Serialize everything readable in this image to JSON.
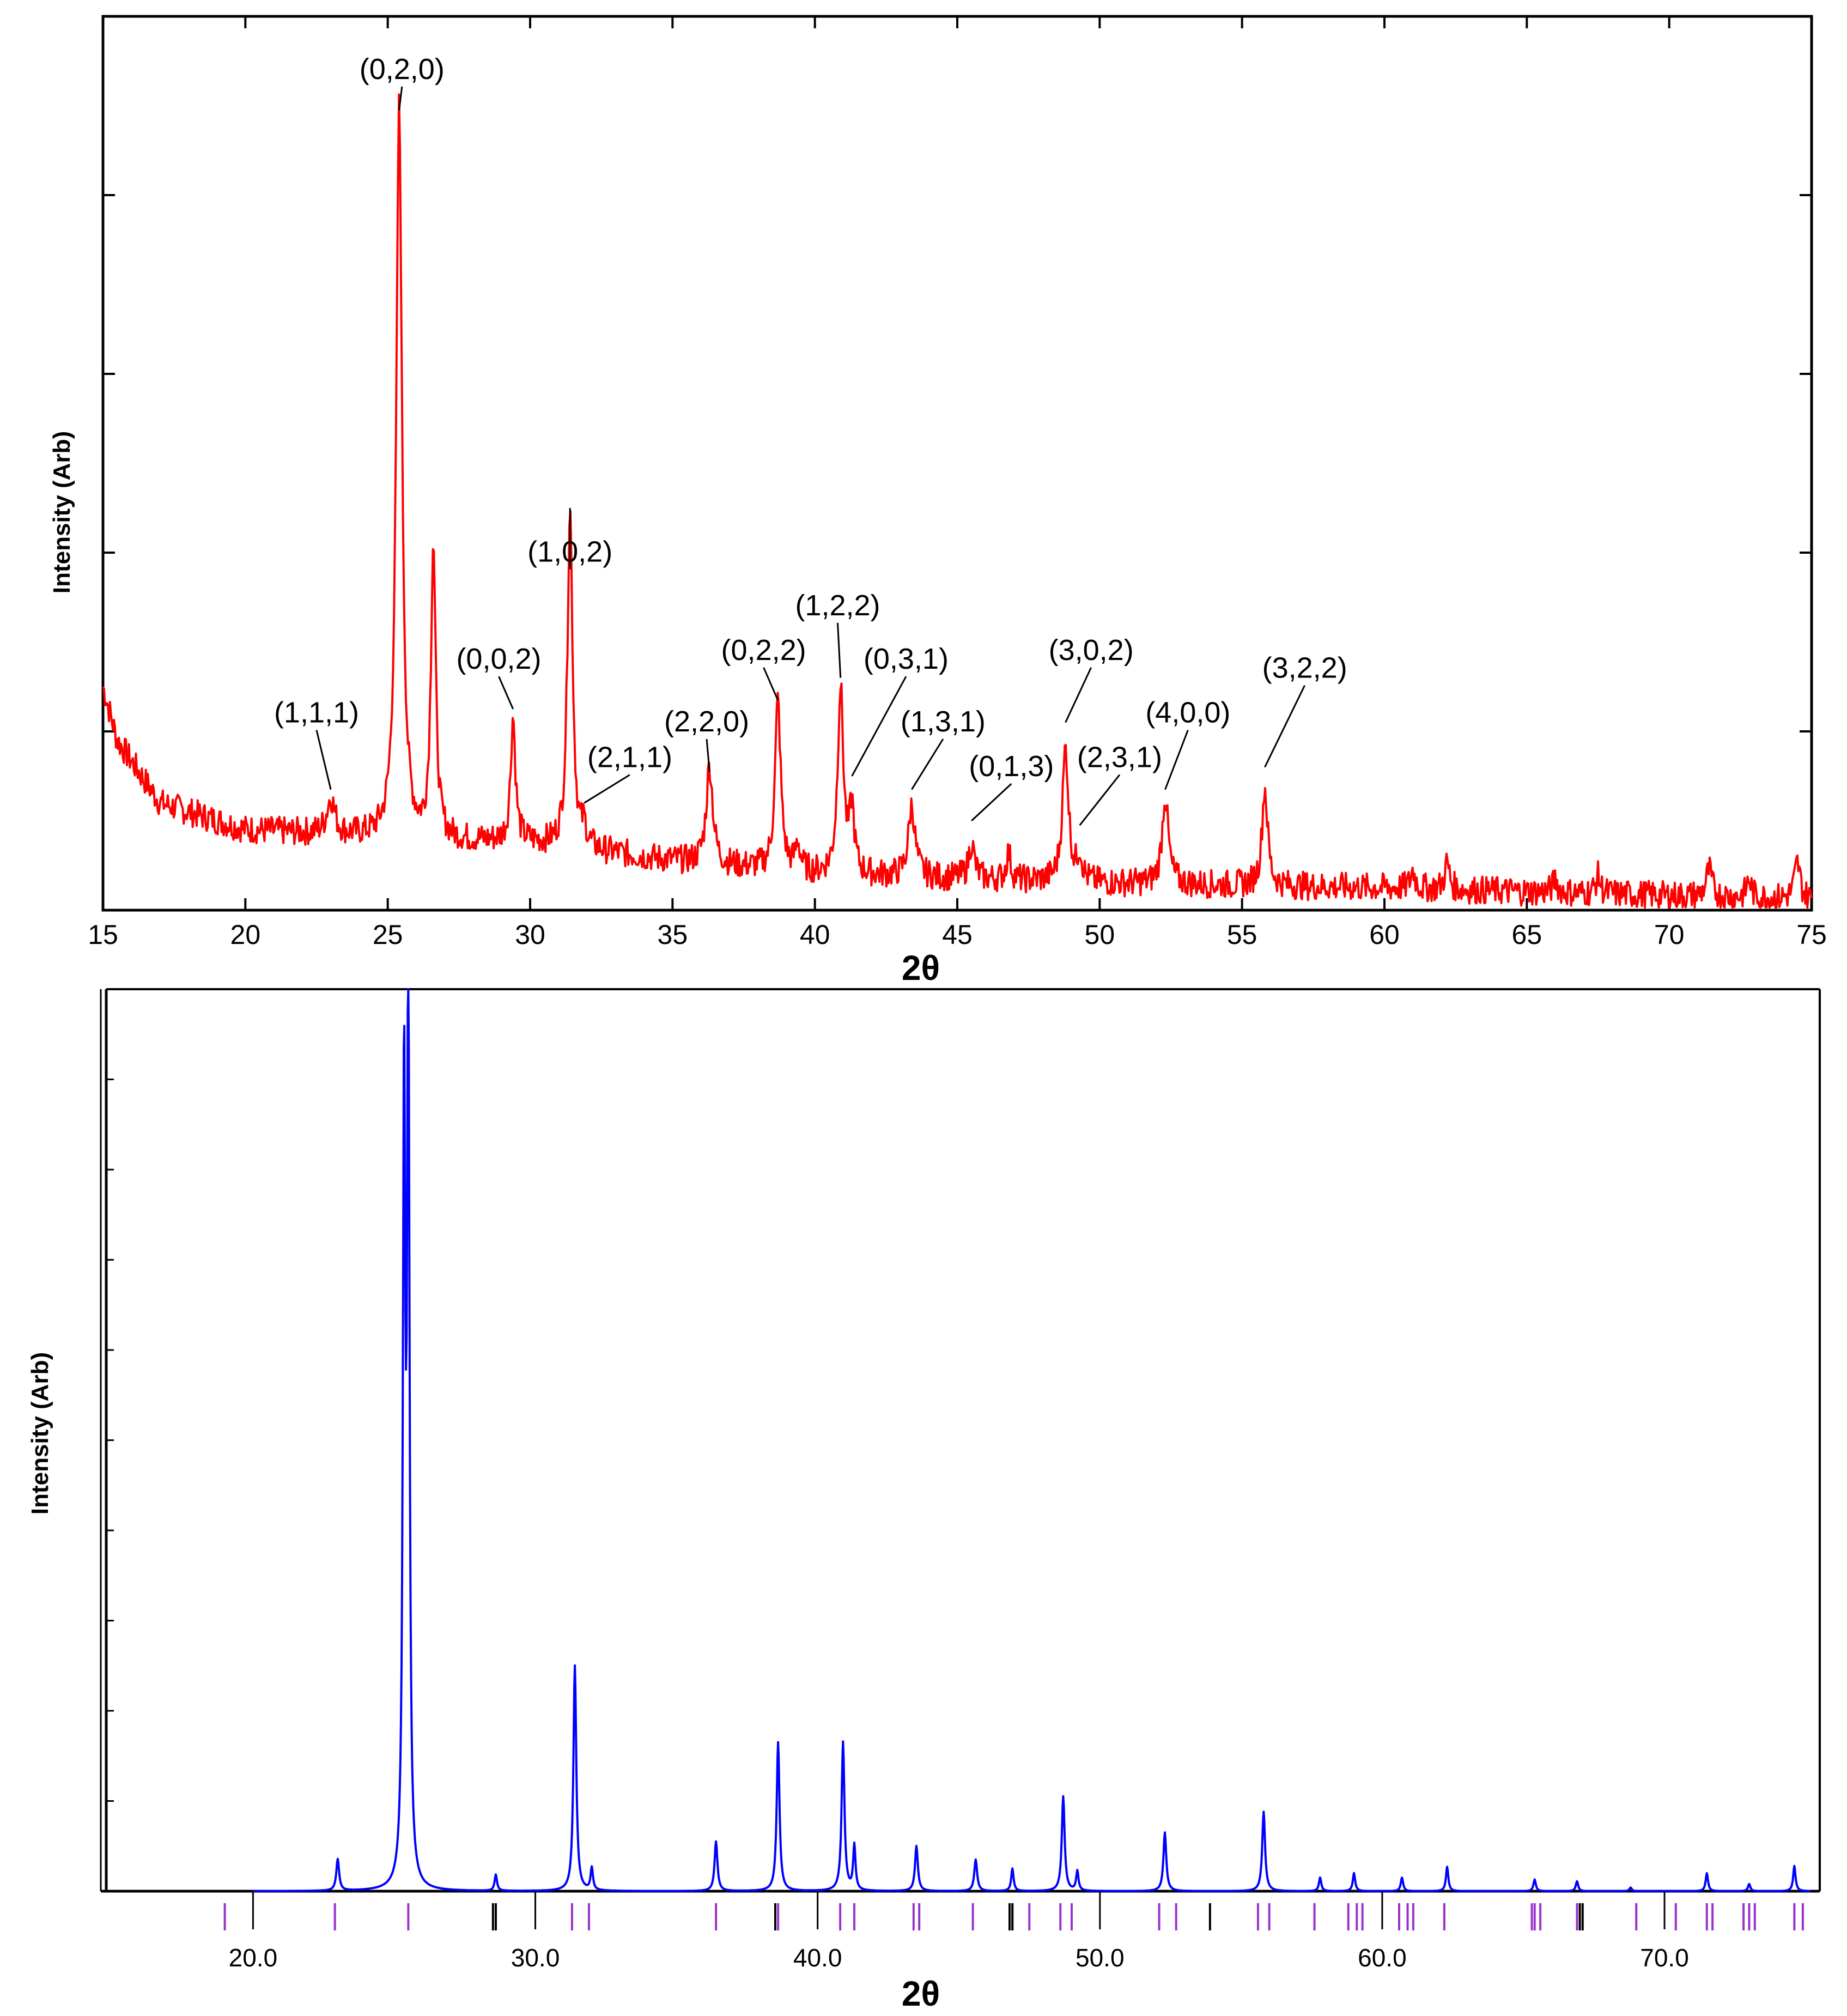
{
  "colors": {
    "experimental": "#ff0000",
    "calculated": "#0000ff",
    "reflection_marker": "#9933cc",
    "impurity_marker": "#000000",
    "axis": "#000000"
  },
  "chart_data": [
    {
      "type": "line",
      "ylabel": "Intensity (Arb)",
      "xlabel": "2θ",
      "xlim": [
        15,
        75
      ],
      "ylim": [
        0,
        100
      ],
      "xticks": [
        "15",
        "20",
        "25",
        "30",
        "35",
        "40",
        "45",
        "50",
        "55",
        "60",
        "65",
        "70",
        "75"
      ],
      "grid": false,
      "series": [
        {
          "background": [
            [
              15,
              25
            ],
            [
              15.5,
              19
            ],
            [
              17,
              12
            ],
            [
              20,
              9
            ],
            [
              25,
              8
            ],
            [
              30,
              7.5
            ],
            [
              35,
              5.5
            ],
            [
              40,
              4
            ],
            [
              45,
              3.5
            ],
            [
              50,
              3
            ],
            [
              60,
              2.5
            ],
            [
              75,
              1.2
            ]
          ],
          "noise": 1.6,
          "peaks": [
            {
              "x": 23.0,
              "h": 4,
              "w": 0.17
            },
            {
              "x": 25.4,
              "h": 82,
              "w": 0.12
            },
            {
              "x": 26.6,
              "h": 33,
              "w": 0.1
            },
            {
              "x": 29.4,
              "h": 14,
              "w": 0.1
            },
            {
              "x": 31.4,
              "h": 38,
              "w": 0.11
            },
            {
              "x": 31.9,
              "h": 2,
              "w": 0.1
            },
            {
              "x": 36.3,
              "h": 11,
              "w": 0.14
            },
            {
              "x": 38.7,
              "h": 19,
              "w": 0.12
            },
            {
              "x": 39.4,
              "h": 3,
              "w": 0.1
            },
            {
              "x": 40.9,
              "h": 21,
              "w": 0.12
            },
            {
              "x": 41.3,
              "h": 7,
              "w": 0.1
            },
            {
              "x": 43.4,
              "h": 8,
              "w": 0.14
            },
            {
              "x": 45.5,
              "h": 4,
              "w": 0.12
            },
            {
              "x": 46.8,
              "h": 3,
              "w": 0.1
            },
            {
              "x": 48.8,
              "h": 15,
              "w": 0.13
            },
            {
              "x": 49.3,
              "h": 3,
              "w": 0.1
            },
            {
              "x": 52.3,
              "h": 10,
              "w": 0.13
            },
            {
              "x": 55.8,
              "h": 11,
              "w": 0.12
            },
            {
              "x": 61.0,
              "h": 2,
              "w": 0.1
            },
            {
              "x": 62.2,
              "h": 3,
              "w": 0.1
            },
            {
              "x": 66.0,
              "h": 1.5,
              "w": 0.1
            },
            {
              "x": 67.5,
              "h": 2,
              "w": 0.1
            },
            {
              "x": 71.4,
              "h": 3,
              "w": 0.12
            },
            {
              "x": 72.8,
              "h": 2,
              "w": 0.1
            },
            {
              "x": 74.5,
              "h": 4,
              "w": 0.12
            }
          ]
        }
      ],
      "annotations": [
        {
          "text": "(0,2,0)",
          "x": 25.4,
          "y": 89.5,
          "label_x": 25.5,
          "label_y": 93
        },
        {
          "text": "(1,1,1)",
          "x": 23.0,
          "y": 13.5,
          "label_x": 22.5,
          "label_y": 21
        },
        {
          "text": "(0,0,2)",
          "x": 29.4,
          "y": 22.5,
          "label_x": 28.9,
          "label_y": 27
        },
        {
          "text": "(1,0,2)",
          "x": 31.4,
          "y": 45,
          "label_x": 31.4,
          "label_y": 39
        },
        {
          "text": "(2,1,1)",
          "x": 31.9,
          "y": 12,
          "label_x": 33.5,
          "label_y": 16
        },
        {
          "text": "(2,2,0)",
          "x": 36.3,
          "y": 15.5,
          "label_x": 36.2,
          "label_y": 20
        },
        {
          "text": "(0,2,2)",
          "x": 38.7,
          "y": 23.5,
          "label_x": 38.2,
          "label_y": 28
        },
        {
          "text": "(1,2,2)",
          "x": 40.9,
          "y": 26,
          "label_x": 40.8,
          "label_y": 33
        },
        {
          "text": "(0,3,1)",
          "x": 41.3,
          "y": 15,
          "label_x": 43.2,
          "label_y": 27
        },
        {
          "text": "(1,3,1)",
          "x": 43.4,
          "y": 13.5,
          "label_x": 44.5,
          "label_y": 20
        },
        {
          "text": "(0,1,3)",
          "x": 45.5,
          "y": 10,
          "label_x": 46.9,
          "label_y": 15
        },
        {
          "text": "(3,0,2)",
          "x": 48.8,
          "y": 21,
          "label_x": 49.7,
          "label_y": 28
        },
        {
          "text": "(2,3,1)",
          "x": 49.3,
          "y": 9.5,
          "label_x": 50.7,
          "label_y": 16
        },
        {
          "text": "(4,0,0)",
          "x": 52.3,
          "y": 13.5,
          "label_x": 53.1,
          "label_y": 21
        },
        {
          "text": "(3,2,2)",
          "x": 55.8,
          "y": 16,
          "label_x": 57.2,
          "label_y": 26
        }
      ]
    },
    {
      "type": "line",
      "ylabel": "Intensity (Arb)",
      "xlabel": "2θ",
      "xlim": [
        14.8,
        75.5
      ],
      "ylim": [
        0,
        100
      ],
      "xticks": [
        "20.0",
        "30.0",
        "40.0",
        "50.0",
        "60.0",
        "70.0"
      ],
      "grid": false,
      "series": [
        {
          "peaks": [
            {
              "x": 23.0,
              "h": 3.5,
              "w": 0.06
            },
            {
              "x": 25.35,
              "h": 88,
              "w": 0.05
            },
            {
              "x": 25.5,
              "h": 100,
              "w": 0.05
            },
            {
              "x": 28.6,
              "h": 1.8,
              "w": 0.05
            },
            {
              "x": 31.4,
              "h": 25,
              "w": 0.06
            },
            {
              "x": 32.0,
              "h": 2.5,
              "w": 0.05
            },
            {
              "x": 36.4,
              "h": 5.5,
              "w": 0.06
            },
            {
              "x": 38.6,
              "h": 16.5,
              "w": 0.06
            },
            {
              "x": 40.9,
              "h": 16.5,
              "w": 0.06
            },
            {
              "x": 41.3,
              "h": 5,
              "w": 0.05
            },
            {
              "x": 43.5,
              "h": 5,
              "w": 0.06
            },
            {
              "x": 45.6,
              "h": 3.5,
              "w": 0.06
            },
            {
              "x": 46.9,
              "h": 2.5,
              "w": 0.05
            },
            {
              "x": 48.7,
              "h": 10.5,
              "w": 0.06
            },
            {
              "x": 49.2,
              "h": 2.2,
              "w": 0.05
            },
            {
              "x": 52.3,
              "h": 6.5,
              "w": 0.06
            },
            {
              "x": 55.8,
              "h": 8.8,
              "w": 0.06
            },
            {
              "x": 57.8,
              "h": 1.5,
              "w": 0.05
            },
            {
              "x": 59.0,
              "h": 2,
              "w": 0.05
            },
            {
              "x": 60.7,
              "h": 1.5,
              "w": 0.05
            },
            {
              "x": 62.3,
              "h": 2.7,
              "w": 0.05
            },
            {
              "x": 65.4,
              "h": 1.3,
              "w": 0.05
            },
            {
              "x": 66.9,
              "h": 1.1,
              "w": 0.05
            },
            {
              "x": 68.8,
              "h": 0.4,
              "w": 0.05
            },
            {
              "x": 71.5,
              "h": 2,
              "w": 0.05
            },
            {
              "x": 73.0,
              "h": 0.8,
              "w": 0.05
            },
            {
              "x": 74.6,
              "h": 2.8,
              "w": 0.05
            }
          ]
        }
      ],
      "reflection_ticks": [
        19.0,
        22.9,
        25.5,
        31.3,
        31.9,
        36.4,
        38.6,
        40.8,
        41.3,
        43.4,
        43.6,
        45.5,
        46.9,
        47.5,
        48.6,
        49.0,
        52.1,
        52.7,
        55.6,
        56.0,
        57.6,
        58.8,
        59.1,
        59.3,
        60.6,
        60.9,
        61.1,
        62.2,
        65.3,
        65.4,
        65.6,
        66.9,
        69.0,
        70.4,
        71.5,
        71.7,
        72.8,
        73.0,
        73.2,
        74.6,
        74.9
      ],
      "impurity_ticks": [
        28.5,
        28.6,
        38.5,
        46.8,
        46.9,
        53.9,
        67.0,
        67.1
      ]
    }
  ]
}
